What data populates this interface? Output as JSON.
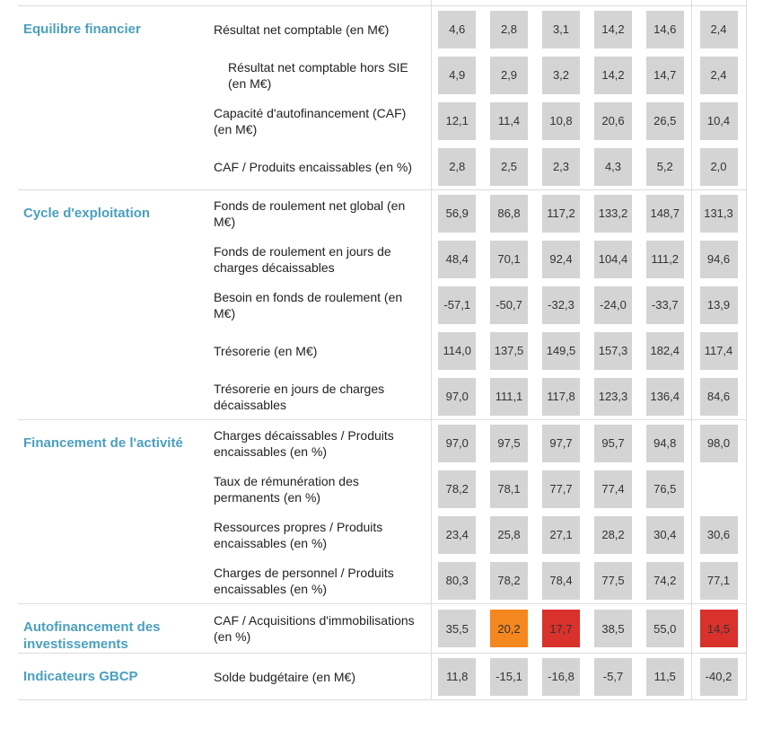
{
  "colors": {
    "section": "#4a9fbe",
    "cell": "#d4d4d4",
    "orange": "#f5871f",
    "red": "#d9312b"
  },
  "sections": [
    {
      "title": "Equilibre financier",
      "rows": [
        {
          "label": "Résultat net comptable (en M€)",
          "values": [
            "4,6",
            "2,8",
            "3,1",
            "14,2",
            "14,6",
            "2,4"
          ],
          "status": [
            "",
            "",
            "",
            "",
            "",
            ""
          ]
        },
        {
          "label": "Résultat net comptable hors SIE (en M€)",
          "values": [
            "4,9",
            "2,9",
            "3,2",
            "14,2",
            "14,7",
            "2,4"
          ],
          "status": [
            "",
            "",
            "",
            "",
            "",
            ""
          ]
        },
        {
          "label": "Capacité d'autofinancement (CAF) (en M€)",
          "values": [
            "12,1",
            "11,4",
            "10,8",
            "20,6",
            "26,5",
            "10,4"
          ],
          "status": [
            "",
            "",
            "",
            "",
            "",
            ""
          ]
        },
        {
          "label": "CAF / Produits encaissables (en %)",
          "values": [
            "2,8",
            "2,5",
            "2,3",
            "4,3",
            "5,2",
            "2,0"
          ],
          "status": [
            "",
            "",
            "",
            "",
            "",
            ""
          ]
        }
      ]
    },
    {
      "title": "Cycle d'exploitation",
      "rows": [
        {
          "label": "Fonds de roulement net global (en M€)",
          "values": [
            "56,9",
            "86,8",
            "117,2",
            "133,2",
            "148,7",
            "131,3"
          ],
          "status": [
            "",
            "",
            "",
            "",
            "",
            ""
          ]
        },
        {
          "label": "Fonds de roulement en jours de charges décaissables",
          "values": [
            "48,4",
            "70,1",
            "92,4",
            "104,4",
            "111,2",
            "94,6"
          ],
          "status": [
            "",
            "",
            "",
            "",
            "",
            ""
          ]
        },
        {
          "label": "Besoin en fonds de roulement (en M€)",
          "values": [
            "-57,1",
            "-50,7",
            "-32,3",
            "-24,0",
            "-33,7",
            "13,9"
          ],
          "status": [
            "",
            "",
            "",
            "",
            "",
            ""
          ]
        },
        {
          "label": "Trésorerie (en M€)",
          "values": [
            "114,0",
            "137,5",
            "149,5",
            "157,3",
            "182,4",
            "117,4"
          ],
          "status": [
            "",
            "",
            "",
            "",
            "",
            ""
          ]
        },
        {
          "label": "Trésorerie en jours de charges décaissables",
          "values": [
            "97,0",
            "111,1",
            "117,8",
            "123,3",
            "136,4",
            "84,6"
          ],
          "status": [
            "",
            "",
            "",
            "",
            "",
            ""
          ]
        }
      ]
    },
    {
      "title": "Financement de l'activité",
      "rows": [
        {
          "label": "Charges décaissables / Produits encaissables (en %)",
          "values": [
            "97,0",
            "97,5",
            "97,7",
            "95,7",
            "94,8",
            "98,0"
          ],
          "status": [
            "",
            "",
            "",
            "",
            "",
            ""
          ]
        },
        {
          "label": "Taux de rémunération des permanents (en %)",
          "values": [
            "78,2",
            "78,1",
            "77,7",
            "77,4",
            "76,5",
            ""
          ],
          "status": [
            "",
            "",
            "",
            "",
            "",
            "empty"
          ]
        },
        {
          "label": "Ressources propres / Produits encaissables (en %)",
          "values": [
            "23,4",
            "25,8",
            "27,1",
            "28,2",
            "30,4",
            "30,6"
          ],
          "status": [
            "",
            "",
            "",
            "",
            "",
            ""
          ]
        },
        {
          "label": "Charges de personnel / Produits encaissables (en %)",
          "values": [
            "80,3",
            "78,2",
            "78,4",
            "77,5",
            "74,2",
            "77,1"
          ],
          "status": [
            "",
            "",
            "",
            "",
            "",
            ""
          ]
        }
      ]
    },
    {
      "title": "Autofinancement des investissements",
      "rows": [
        {
          "label": "CAF / Acquisitions d'immobilisations (en %)",
          "values": [
            "35,5",
            "20,2",
            "17,7",
            "38,5",
            "55,0",
            "14,5"
          ],
          "status": [
            "",
            "orange",
            "red",
            "",
            "",
            "red"
          ]
        }
      ]
    },
    {
      "title": "Indicateurs GBCP",
      "rows": [
        {
          "label": "Solde budgétaire (en M€)",
          "values": [
            "11,8",
            "-15,1",
            "-16,8",
            "-5,7",
            "11,5",
            "-40,2"
          ],
          "status": [
            "",
            "",
            "",
            "",
            "",
            ""
          ]
        }
      ]
    }
  ]
}
